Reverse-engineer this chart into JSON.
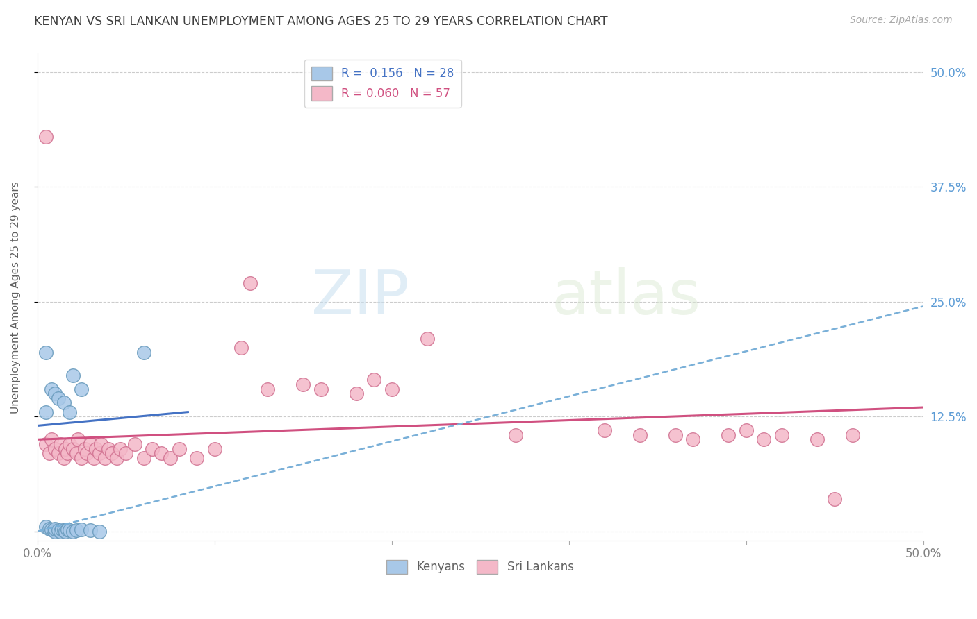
{
  "title": "KENYAN VS SRI LANKAN UNEMPLOYMENT AMONG AGES 25 TO 29 YEARS CORRELATION CHART",
  "source": "Source: ZipAtlas.com",
  "ylabel": "Unemployment Among Ages 25 to 29 years",
  "xlim": [
    0.0,
    0.5
  ],
  "ylim": [
    -0.01,
    0.52
  ],
  "xticks": [
    0.0,
    0.1,
    0.2,
    0.3,
    0.4,
    0.5
  ],
  "xticklabels": [
    "0.0%",
    "",
    "",
    "",
    "",
    "50.0%"
  ],
  "ytick_positions": [
    0.0,
    0.125,
    0.25,
    0.375,
    0.5
  ],
  "ytick_labels_right": [
    "",
    "12.5%",
    "25.0%",
    "37.5%",
    "50.0%"
  ],
  "right_axis_color": "#5b9bd5",
  "kenya_color": "#a8c8e8",
  "kenya_edge_color": "#6699bb",
  "srilanka_color": "#f4b8c8",
  "srilanka_edge_color": "#d07090",
  "kenya_R": 0.156,
  "kenya_N": 28,
  "srilanka_R": 0.06,
  "srilanka_N": 57,
  "kenya_scatter": [
    [
      0.005,
      0.005
    ],
    [
      0.007,
      0.003
    ],
    [
      0.008,
      0.002
    ],
    [
      0.009,
      0.001
    ],
    [
      0.01,
      0.0
    ],
    [
      0.01,
      0.003
    ],
    [
      0.012,
      0.001
    ],
    [
      0.013,
      0.0
    ],
    [
      0.014,
      0.002
    ],
    [
      0.015,
      0.001
    ],
    [
      0.016,
      0.0
    ],
    [
      0.017,
      0.002
    ],
    [
      0.018,
      0.001
    ],
    [
      0.02,
      0.0
    ],
    [
      0.022,
      0.001
    ],
    [
      0.025,
      0.002
    ],
    [
      0.03,
      0.001
    ],
    [
      0.035,
      0.0
    ],
    [
      0.005,
      0.13
    ],
    [
      0.008,
      0.155
    ],
    [
      0.01,
      0.15
    ],
    [
      0.012,
      0.145
    ],
    [
      0.015,
      0.14
    ],
    [
      0.018,
      0.13
    ],
    [
      0.02,
      0.17
    ],
    [
      0.025,
      0.155
    ],
    [
      0.005,
      0.195
    ],
    [
      0.06,
      0.195
    ]
  ],
  "srilanka_scatter": [
    [
      0.005,
      0.43
    ],
    [
      0.12,
      0.27
    ],
    [
      0.22,
      0.21
    ],
    [
      0.005,
      0.095
    ],
    [
      0.007,
      0.085
    ],
    [
      0.008,
      0.1
    ],
    [
      0.01,
      0.09
    ],
    [
      0.012,
      0.085
    ],
    [
      0.013,
      0.095
    ],
    [
      0.015,
      0.08
    ],
    [
      0.016,
      0.09
    ],
    [
      0.017,
      0.085
    ],
    [
      0.018,
      0.095
    ],
    [
      0.02,
      0.09
    ],
    [
      0.022,
      0.085
    ],
    [
      0.023,
      0.1
    ],
    [
      0.025,
      0.08
    ],
    [
      0.027,
      0.09
    ],
    [
      0.028,
      0.085
    ],
    [
      0.03,
      0.095
    ],
    [
      0.032,
      0.08
    ],
    [
      0.033,
      0.09
    ],
    [
      0.035,
      0.085
    ],
    [
      0.036,
      0.095
    ],
    [
      0.038,
      0.08
    ],
    [
      0.04,
      0.09
    ],
    [
      0.042,
      0.085
    ],
    [
      0.045,
      0.08
    ],
    [
      0.047,
      0.09
    ],
    [
      0.05,
      0.085
    ],
    [
      0.055,
      0.095
    ],
    [
      0.06,
      0.08
    ],
    [
      0.065,
      0.09
    ],
    [
      0.07,
      0.085
    ],
    [
      0.075,
      0.08
    ],
    [
      0.08,
      0.09
    ],
    [
      0.09,
      0.08
    ],
    [
      0.1,
      0.09
    ],
    [
      0.115,
      0.2
    ],
    [
      0.13,
      0.155
    ],
    [
      0.15,
      0.16
    ],
    [
      0.16,
      0.155
    ],
    [
      0.18,
      0.15
    ],
    [
      0.19,
      0.165
    ],
    [
      0.2,
      0.155
    ],
    [
      0.27,
      0.105
    ],
    [
      0.32,
      0.11
    ],
    [
      0.34,
      0.105
    ],
    [
      0.36,
      0.105
    ],
    [
      0.37,
      0.1
    ],
    [
      0.39,
      0.105
    ],
    [
      0.4,
      0.11
    ],
    [
      0.41,
      0.1
    ],
    [
      0.42,
      0.105
    ],
    [
      0.44,
      0.1
    ],
    [
      0.45,
      0.035
    ],
    [
      0.46,
      0.105
    ]
  ],
  "kenya_trendline": [
    [
      0.0,
      0.115
    ],
    [
      0.085,
      0.13
    ]
  ],
  "srilanka_trendline": [
    [
      0.0,
      0.1
    ],
    [
      0.5,
      0.135
    ]
  ],
  "dashed_trendline": [
    [
      0.0,
      0.0
    ],
    [
      0.5,
      0.245
    ]
  ],
  "background_color": "#ffffff",
  "grid_color": "#cccccc",
  "title_color": "#404040"
}
